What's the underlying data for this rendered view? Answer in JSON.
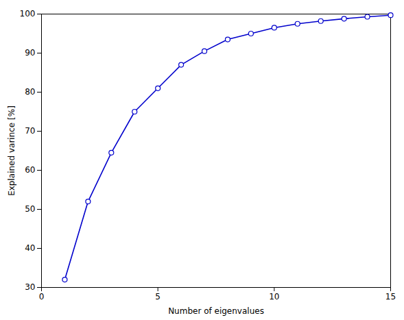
{
  "chart_data": {
    "type": "line",
    "xlabel": "Number of eigenvalues",
    "ylabel": "Explained varince [%]",
    "x": [
      1,
      2,
      3,
      4,
      5,
      6,
      7,
      8,
      9,
      10,
      11,
      12,
      13,
      14,
      15
    ],
    "values": [
      32,
      52,
      64.5,
      75,
      81,
      87,
      90.5,
      93.5,
      95,
      96.5,
      97.5,
      98.2,
      98.8,
      99.3,
      99.7
    ],
    "color": "#0000CC",
    "marker": "circle",
    "xlim": [
      0,
      15
    ],
    "ylim": [
      30,
      100
    ],
    "xticks": [
      0,
      5,
      10,
      15
    ],
    "yticks": [
      30,
      40,
      50,
      60,
      70,
      80,
      90,
      100
    ],
    "grid": false
  }
}
